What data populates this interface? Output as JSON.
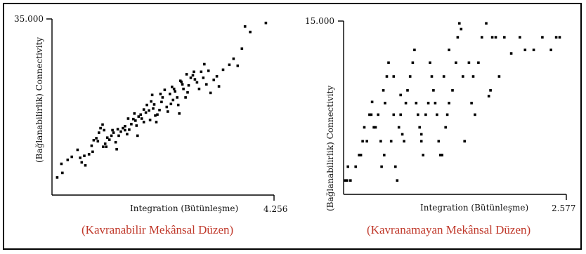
{
  "chart_data": [
    {
      "type": "scatter",
      "caption": "(Kavranabilir  Mekânsal Düzen)",
      "xlabel": "Integration  (Bütünleşme)",
      "ylabel": "(Bağlanabilirlik)  Connectivity",
      "ytick": "35.000",
      "xtick": "4.256",
      "xlim": [
        0,
        4.256
      ],
      "ylim": [
        0,
        35
      ],
      "points": [
        [
          0.1,
          3.5
        ],
        [
          0.2,
          4.4
        ],
        [
          0.18,
          6.2
        ],
        [
          0.38,
          7.6
        ],
        [
          0.49,
          9.0
        ],
        [
          0.54,
          7.4
        ],
        [
          0.57,
          6.5
        ],
        [
          0.64,
          5.9
        ],
        [
          0.71,
          8.1
        ],
        [
          0.76,
          9.8
        ],
        [
          0.8,
          10.9
        ],
        [
          0.85,
          11.3
        ],
        [
          0.88,
          10.7
        ],
        [
          0.9,
          12.4
        ],
        [
          0.93,
          13.3
        ],
        [
          0.97,
          14.0
        ],
        [
          1.0,
          12.9
        ],
        [
          1.02,
          10.2
        ],
        [
          1.04,
          9.6
        ],
        [
          1.1,
          11.0
        ],
        [
          1.14,
          11.8
        ],
        [
          1.18,
          12.4
        ],
        [
          1.22,
          10.5
        ],
        [
          1.24,
          9.1
        ],
        [
          1.28,
          11.8
        ],
        [
          1.32,
          12.6
        ],
        [
          1.36,
          13.3
        ],
        [
          1.4,
          13.7
        ],
        [
          1.4,
          12.9
        ],
        [
          1.44,
          12.1
        ],
        [
          1.48,
          13.0
        ],
        [
          1.52,
          14.1
        ],
        [
          1.56,
          15.1
        ],
        [
          1.6,
          14.8
        ],
        [
          1.62,
          13.8
        ],
        [
          1.66,
          15.6
        ],
        [
          1.7,
          16.0
        ],
        [
          1.72,
          15.2
        ],
        [
          1.76,
          17.0
        ],
        [
          1.8,
          16.4
        ],
        [
          1.82,
          17.9
        ],
        [
          1.86,
          16.8
        ],
        [
          1.88,
          14.9
        ],
        [
          1.9,
          18.6
        ],
        [
          1.92,
          19.9
        ],
        [
          1.94,
          17.2
        ],
        [
          1.98,
          15.8
        ],
        [
          2.0,
          14.5
        ],
        [
          2.02,
          16.0
        ],
        [
          2.06,
          16.9
        ],
        [
          2.1,
          18.5
        ],
        [
          2.12,
          19.4
        ],
        [
          2.16,
          20.9
        ],
        [
          2.2,
          17.5
        ],
        [
          2.22,
          16.6
        ],
        [
          2.26,
          20.1
        ],
        [
          2.3,
          21.5
        ],
        [
          2.32,
          18.9
        ],
        [
          2.36,
          20.6
        ],
        [
          2.4,
          19.4
        ],
        [
          2.42,
          17.9
        ],
        [
          2.44,
          16.2
        ],
        [
          2.46,
          22.7
        ],
        [
          2.5,
          22.0
        ],
        [
          2.52,
          21.1
        ],
        [
          2.56,
          19.4
        ],
        [
          2.6,
          20.4
        ],
        [
          2.62,
          21.8
        ],
        [
          2.66,
          23.3
        ],
        [
          2.7,
          23.8
        ],
        [
          2.72,
          24.5
        ],
        [
          2.78,
          22.4
        ],
        [
          2.82,
          21.1
        ],
        [
          2.86,
          24.5
        ],
        [
          2.9,
          23.3
        ],
        [
          2.96,
          22.0
        ],
        [
          3.0,
          24.7
        ],
        [
          3.04,
          20.3
        ],
        [
          3.1,
          22.9
        ],
        [
          3.16,
          23.6
        ],
        [
          3.2,
          21.6
        ],
        [
          3.28,
          24.9
        ],
        [
          3.4,
          25.9
        ],
        [
          3.48,
          27.1
        ],
        [
          3.56,
          25.7
        ],
        [
          3.64,
          29.1
        ],
        [
          3.7,
          33.5
        ],
        [
          3.8,
          32.4
        ],
        [
          4.1,
          34.2
        ],
        [
          0.3,
          7.0
        ],
        [
          0.62,
          7.8
        ],
        [
          0.78,
          8.6
        ],
        [
          0.98,
          9.6
        ],
        [
          1.06,
          11.4
        ],
        [
          1.16,
          12.9
        ],
        [
          1.26,
          13.1
        ],
        [
          1.46,
          15.2
        ],
        [
          1.58,
          16.2
        ],
        [
          1.64,
          11.8
        ],
        [
          1.76,
          14.5
        ],
        [
          1.96,
          18.0
        ],
        [
          2.08,
          20.1
        ],
        [
          2.28,
          18.1
        ],
        [
          2.34,
          21.1
        ],
        [
          2.48,
          22.5
        ],
        [
          2.58,
          24.0
        ],
        [
          2.74,
          23.0
        ],
        [
          2.92,
          26.0
        ]
      ]
    },
    {
      "type": "scatter",
      "caption": "(Kavranamayan  Mekânsal Düzen)",
      "xlabel": "Integration  (Bütünleşme)",
      "ylabel": "(Bağlanabilirlik)  Connectivity",
      "ytick": "15.000",
      "xtick": "2.577",
      "xlim": [
        0,
        2.577
      ],
      "ylim": [
        0,
        15
      ],
      "points": [
        [
          0.02,
          1.2
        ],
        [
          0.04,
          1.2
        ],
        [
          0.05,
          2.4
        ],
        [
          0.08,
          1.2
        ],
        [
          0.14,
          2.4
        ],
        [
          0.18,
          3.4
        ],
        [
          0.2,
          3.4
        ],
        [
          0.22,
          4.6
        ],
        [
          0.24,
          5.8
        ],
        [
          0.27,
          4.6
        ],
        [
          0.3,
          6.9
        ],
        [
          0.32,
          6.9
        ],
        [
          0.33,
          8.0
        ],
        [
          0.35,
          5.8
        ],
        [
          0.37,
          5.8
        ],
        [
          0.4,
          6.9
        ],
        [
          0.43,
          4.6
        ],
        [
          0.44,
          2.4
        ],
        [
          0.46,
          9.0
        ],
        [
          0.47,
          3.4
        ],
        [
          0.48,
          7.9
        ],
        [
          0.5,
          10.2
        ],
        [
          0.52,
          11.4
        ],
        [
          0.55,
          4.6
        ],
        [
          0.58,
          6.9
        ],
        [
          0.6,
          2.4
        ],
        [
          0.62,
          1.2
        ],
        [
          0.64,
          5.8
        ],
        [
          0.66,
          6.9
        ],
        [
          0.68,
          5.2
        ],
        [
          0.7,
          4.6
        ],
        [
          0.72,
          7.9
        ],
        [
          0.74,
          9.0
        ],
        [
          0.77,
          10.2
        ],
        [
          0.8,
          11.4
        ],
        [
          0.82,
          12.5
        ],
        [
          0.84,
          7.9
        ],
        [
          0.86,
          6.9
        ],
        [
          0.88,
          5.8
        ],
        [
          0.9,
          4.6
        ],
        [
          0.92,
          3.4
        ],
        [
          0.95,
          6.9
        ],
        [
          0.98,
          7.9
        ],
        [
          1.0,
          11.4
        ],
        [
          1.02,
          10.2
        ],
        [
          1.04,
          9.0
        ],
        [
          1.06,
          7.9
        ],
        [
          1.08,
          6.9
        ],
        [
          1.1,
          4.6
        ],
        [
          1.12,
          3.4
        ],
        [
          1.14,
          3.4
        ],
        [
          1.16,
          10.2
        ],
        [
          1.18,
          5.8
        ],
        [
          1.2,
          6.9
        ],
        [
          1.22,
          7.9
        ],
        [
          1.26,
          9.0
        ],
        [
          1.3,
          11.4
        ],
        [
          1.32,
          13.6
        ],
        [
          1.34,
          14.8
        ],
        [
          1.36,
          14.3
        ],
        [
          1.38,
          10.2
        ],
        [
          1.4,
          4.6
        ],
        [
          1.45,
          11.4
        ],
        [
          1.48,
          7.9
        ],
        [
          1.52,
          6.9
        ],
        [
          1.56,
          11.4
        ],
        [
          1.6,
          13.6
        ],
        [
          1.65,
          14.8
        ],
        [
          1.68,
          8.5
        ],
        [
          1.72,
          13.6
        ],
        [
          1.76,
          13.6
        ],
        [
          1.8,
          10.2
        ],
        [
          1.86,
          13.6
        ],
        [
          1.94,
          12.2
        ],
        [
          2.04,
          13.6
        ],
        [
          2.1,
          12.5
        ],
        [
          2.2,
          12.5
        ],
        [
          2.3,
          13.6
        ],
        [
          2.4,
          12.5
        ],
        [
          2.5,
          13.6
        ],
        [
          0.58,
          10.2
        ],
        [
          0.66,
          8.6
        ],
        [
          0.9,
          5.2
        ],
        [
          1.22,
          12.5
        ],
        [
          1.5,
          10.2
        ],
        [
          1.7,
          9.0
        ],
        [
          2.46,
          13.6
        ]
      ]
    }
  ]
}
